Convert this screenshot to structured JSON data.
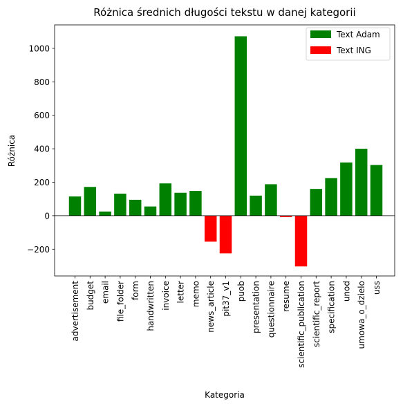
{
  "chart_data": {
    "type": "bar",
    "title": "Różnica średnich długości tekstu w danej kategorii",
    "xlabel": "Kategoria",
    "ylabel": "Różnica",
    "ylim": [
      -360,
      1140
    ],
    "yticks": [
      -200,
      0,
      200,
      400,
      600,
      800,
      1000
    ],
    "grid": false,
    "legend_position": "top-right",
    "legend": [
      {
        "label": "Text Adam",
        "color": "#008000"
      },
      {
        "label": "Text ING",
        "color": "#ff0000"
      }
    ],
    "categories": [
      "advertisement",
      "budget",
      "email",
      "file_folder",
      "form",
      "handwritten",
      "invoice",
      "letter",
      "memo",
      "news_article",
      "pit37_v1",
      "puob",
      "presentation",
      "questionnaire",
      "resume",
      "scientific_publication",
      "scientific_report",
      "specification",
      "unod",
      "umowa_o_dzielo",
      "uss"
    ],
    "values": [
      115,
      172,
      25,
      132,
      95,
      55,
      193,
      137,
      148,
      -155,
      -225,
      1072,
      120,
      188,
      -8,
      -303,
      160,
      225,
      318,
      400,
      303
    ],
    "colors": {
      "positive": "#008000",
      "negative": "#ff0000"
    }
  }
}
